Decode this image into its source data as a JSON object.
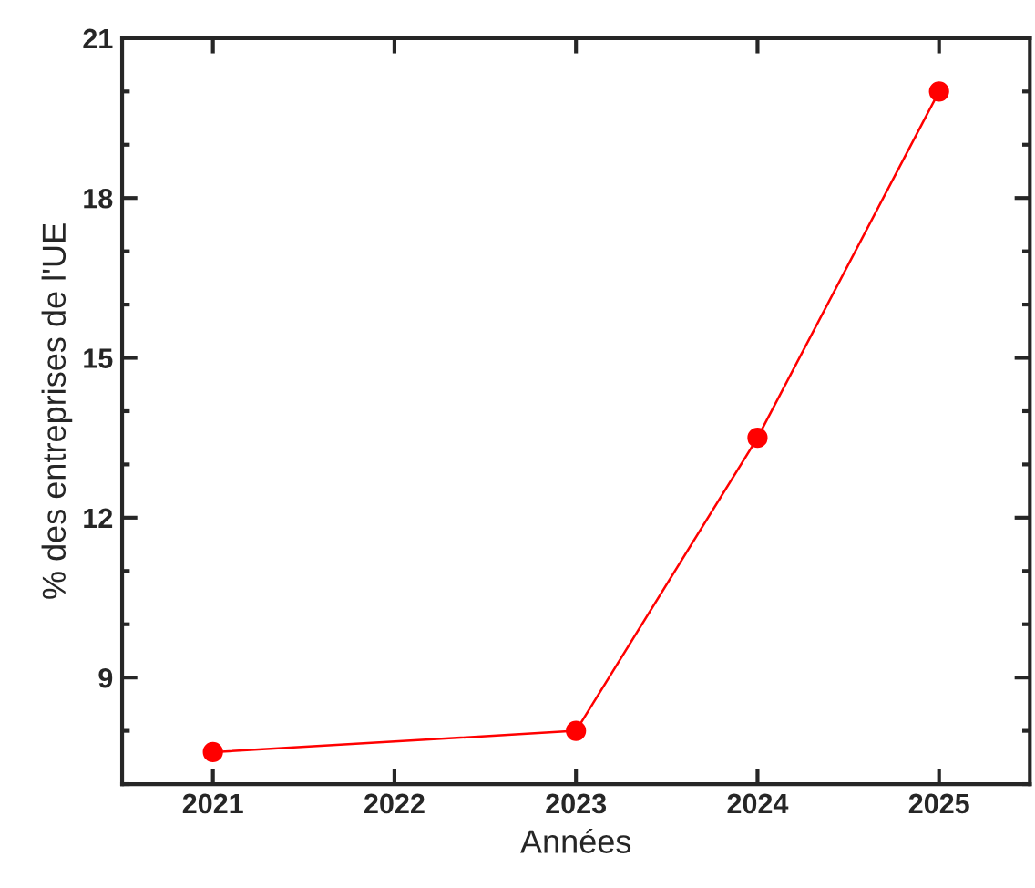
{
  "chart_data": {
    "type": "line",
    "xlabel": "Années",
    "ylabel": "% des entreprises de l'UE",
    "x": [
      2021,
      2023,
      2024,
      2025
    ],
    "series": [
      {
        "color": "#ff0000",
        "values": [
          7.6,
          8.0,
          13.5,
          20.0
        ]
      }
    ],
    "xlim": [
      2020.5,
      2025.5
    ],
    "xticks": [
      2021,
      2022,
      2023,
      2024,
      2025
    ],
    "ylim": [
      7,
      21
    ],
    "yticks": [
      9,
      12,
      15,
      18,
      21
    ],
    "marker": "circle",
    "line_style": "solid",
    "grid": false,
    "legend": false
  }
}
